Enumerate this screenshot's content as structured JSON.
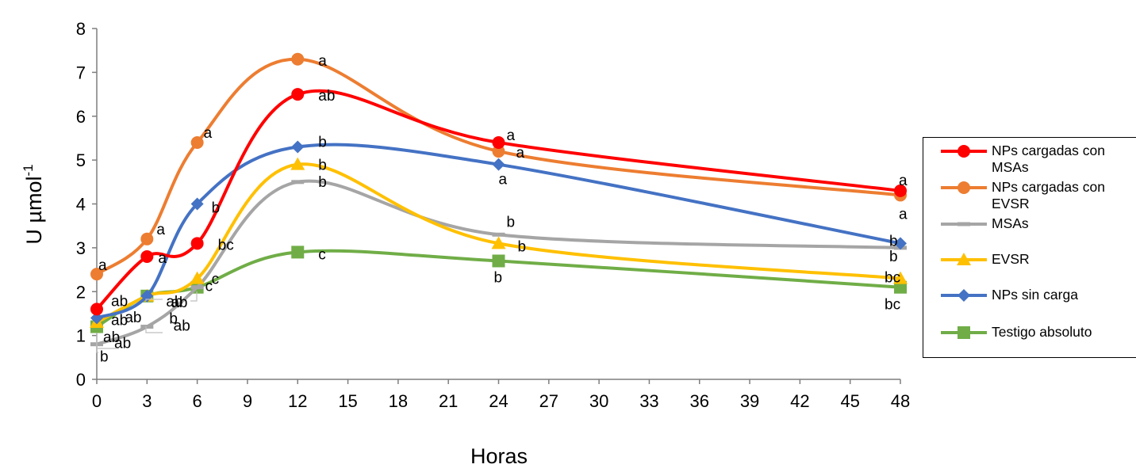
{
  "chart_data": {
    "type": "line",
    "xlabel": "Horas",
    "ylabel_base": "U µmol",
    "ylabel_sup": "-1",
    "xlim": [
      0,
      48
    ],
    "ylim": [
      0,
      8
    ],
    "xticks": [
      "0",
      "3",
      "6",
      "9",
      "12",
      "15",
      "18",
      "21",
      "24",
      "27",
      "30",
      "33",
      "36",
      "39",
      "42",
      "45",
      "48"
    ],
    "yticks": [
      "0",
      "1",
      "2",
      "3",
      "4",
      "5",
      "6",
      "7",
      "8"
    ],
    "grid": false,
    "legend_position": "right",
    "x": [
      0,
      3,
      6,
      12,
      24,
      48
    ],
    "series": [
      {
        "name": "NPs cargadas con MSAs",
        "color": "#FF0000",
        "marker": "circle",
        "values": [
          1.6,
          2.8,
          3.1,
          6.5,
          5.4,
          4.3
        ],
        "labels": [
          "ab",
          "a",
          "bc",
          "ab",
          "a",
          "a"
        ]
      },
      {
        "name": "NPs cargadas con EVSR",
        "color": "#ED7D31",
        "marker": "circle",
        "values": [
          2.4,
          3.2,
          5.4,
          7.3,
          5.2,
          4.2
        ],
        "labels": [
          "a",
          "a",
          "a",
          "a",
          "a",
          "a"
        ]
      },
      {
        "name": "MSAs",
        "color": "#A5A5A5",
        "marker": "dash",
        "values": [
          0.8,
          1.2,
          2.1,
          4.5,
          3.3,
          3.0
        ],
        "labels": [
          "b",
          "b",
          "ab",
          "b",
          "b",
          "b"
        ]
      },
      {
        "name": "EVSR",
        "color": "#FFC000",
        "marker": "triangle",
        "values": [
          1.3,
          1.9,
          2.3,
          4.9,
          3.1,
          2.3
        ],
        "labels": [
          "ab",
          "ab",
          "c",
          "b",
          "b",
          "bc"
        ]
      },
      {
        "name": "NPs sin carga",
        "color": "#4472C4",
        "marker": "diamond",
        "values": [
          1.4,
          1.9,
          4.0,
          5.3,
          4.9,
          3.1
        ],
        "labels": [
          "ab",
          "ab",
          "b",
          "b",
          "a",
          "b"
        ]
      },
      {
        "name": "Testigo absoluto",
        "color": "#70AD47",
        "marker": "square",
        "values": [
          1.2,
          1.9,
          2.1,
          2.9,
          2.7,
          2.1
        ],
        "labels": [
          "ab",
          "ab",
          "c",
          "c",
          "b",
          "bc"
        ]
      }
    ]
  }
}
